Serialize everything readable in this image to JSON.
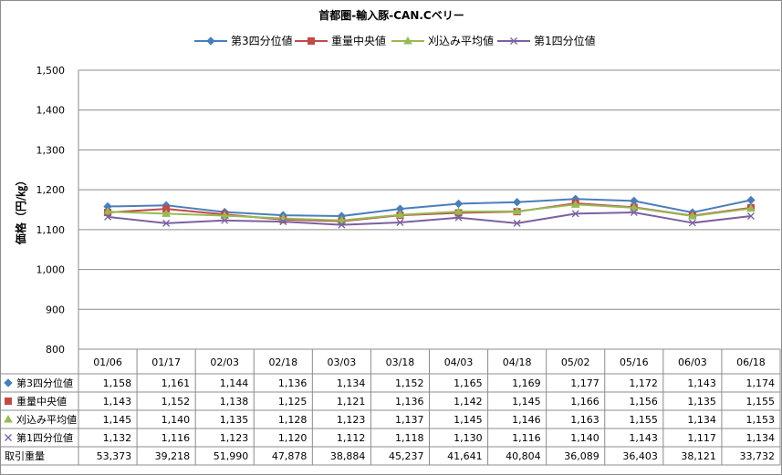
{
  "chart_data": {
    "type": "line",
    "title": "首都圏-輸入豚-CAN.Cベリー",
    "ylabel": "価格（円/㎏）",
    "xlabel": "",
    "ylim": [
      800,
      1500
    ],
    "yticks": [
      "800",
      "900",
      "1,000",
      "1,100",
      "1,200",
      "1,300",
      "1,400",
      "1,500"
    ],
    "legend_position": "top",
    "grid": true,
    "categories": [
      "01/06",
      "01/17",
      "02/03",
      "02/18",
      "03/03",
      "03/18",
      "04/03",
      "04/18",
      "05/02",
      "05/16",
      "06/03",
      "06/18"
    ],
    "series": [
      {
        "name": "第3四分位値",
        "color": "#4a7ebb",
        "marker": "diamond",
        "values": [
          1158,
          1161,
          1144,
          1136,
          1134,
          1152,
          1165,
          1169,
          1177,
          1172,
          1143,
          1174
        ],
        "labels": [
          "1,158",
          "1,161",
          "1,144",
          "1,136",
          "1,134",
          "1,152",
          "1,165",
          "1,169",
          "1,177",
          "1,172",
          "1,143",
          "1,174"
        ]
      },
      {
        "name": "重量中央値",
        "color": "#be4b48",
        "marker": "square",
        "values": [
          1143,
          1152,
          1138,
          1125,
          1121,
          1136,
          1142,
          1145,
          1166,
          1156,
          1135,
          1155
        ],
        "labels": [
          "1,143",
          "1,152",
          "1,138",
          "1,125",
          "1,121",
          "1,136",
          "1,142",
          "1,145",
          "1,166",
          "1,156",
          "1,135",
          "1,155"
        ]
      },
      {
        "name": "刈込み平均値",
        "color": "#98b954",
        "marker": "triangle",
        "values": [
          1145,
          1140,
          1135,
          1128,
          1123,
          1137,
          1145,
          1146,
          1163,
          1155,
          1134,
          1153
        ],
        "labels": [
          "1,145",
          "1,140",
          "1,135",
          "1,128",
          "1,123",
          "1,137",
          "1,145",
          "1,146",
          "1,163",
          "1,155",
          "1,134",
          "1,153"
        ]
      },
      {
        "name": "第1四分位値",
        "color": "#7d60a0",
        "marker": "x",
        "values": [
          1132,
          1116,
          1123,
          1120,
          1112,
          1118,
          1130,
          1116,
          1140,
          1143,
          1117,
          1134
        ],
        "labels": [
          "1,132",
          "1,116",
          "1,123",
          "1,120",
          "1,112",
          "1,118",
          "1,130",
          "1,116",
          "1,140",
          "1,143",
          "1,117",
          "1,134"
        ]
      }
    ],
    "table_extra_rows": [
      {
        "name": "取引重量",
        "labels": [
          "53,373",
          "39,218",
          "51,990",
          "47,878",
          "38,884",
          "45,237",
          "41,641",
          "40,804",
          "36,089",
          "36,403",
          "38,121",
          "33,732"
        ]
      }
    ]
  }
}
